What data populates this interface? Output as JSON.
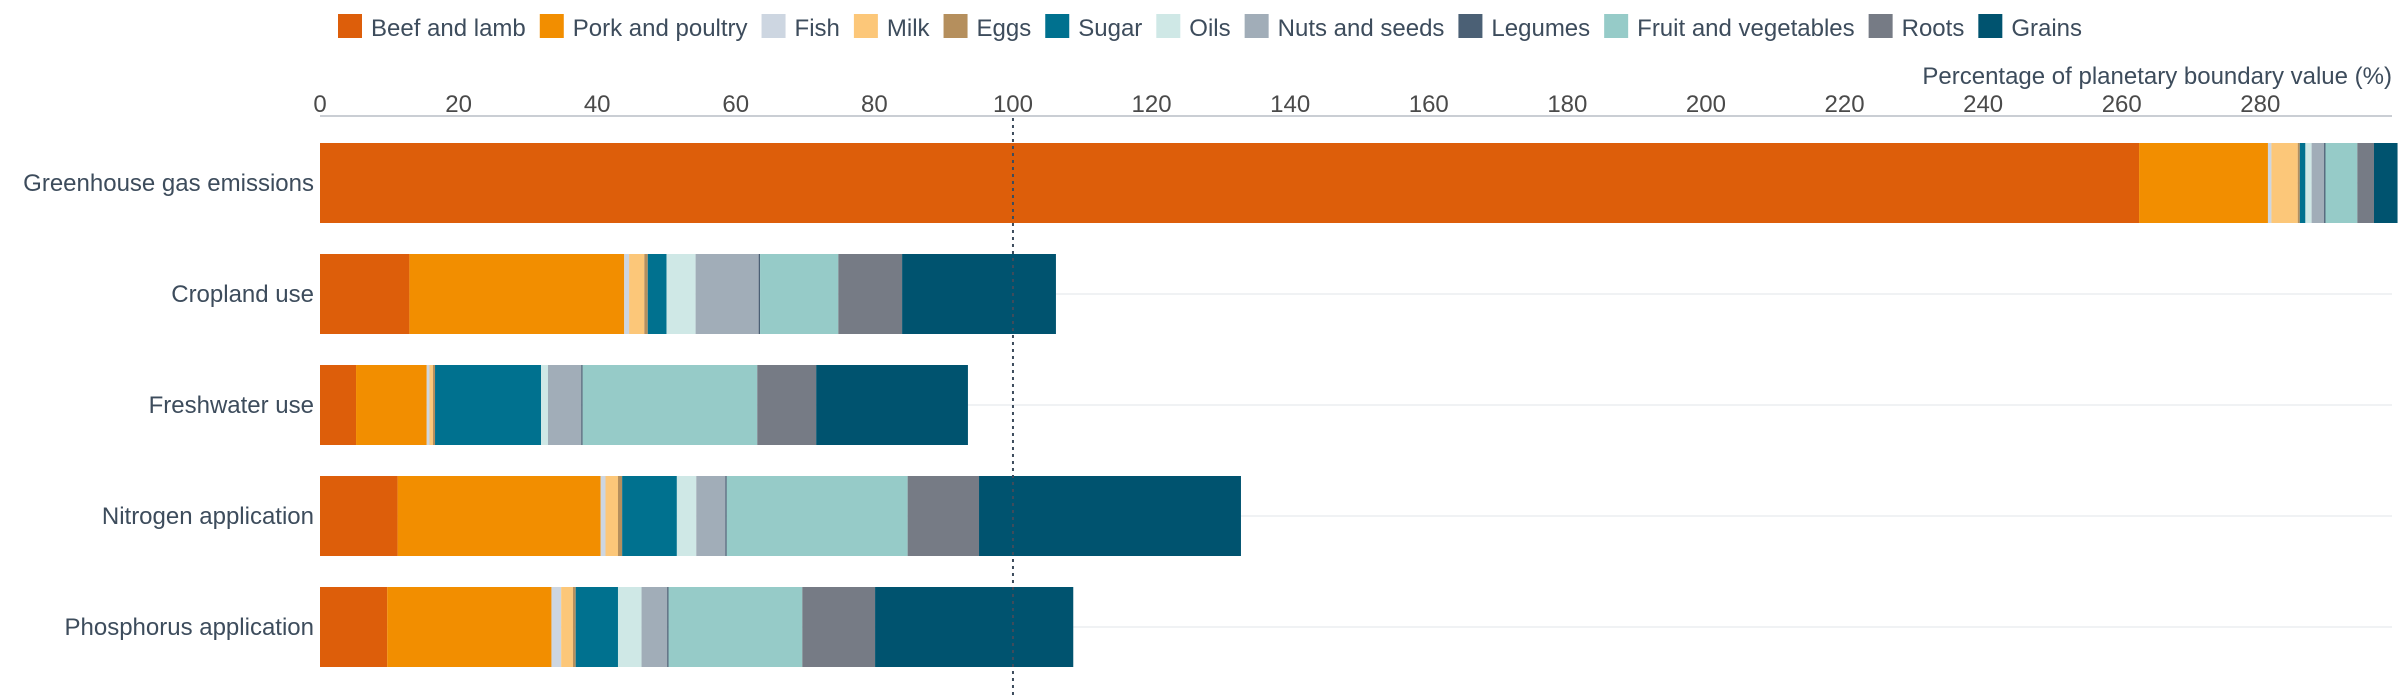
{
  "chart_data": {
    "type": "bar",
    "orientation": "horizontal",
    "stacked": true,
    "title": "",
    "xlabel": "Percentage of planetary boundary value (%)",
    "ylabel": "",
    "xlim": [
      0,
      299
    ],
    "x_ticks": [
      0,
      20,
      40,
      60,
      80,
      100,
      120,
      140,
      160,
      180,
      200,
      220,
      240,
      260,
      280
    ],
    "reference_line": {
      "value": 100,
      "style": "dotted"
    },
    "legend_position": "top",
    "grid": "horizontal row lines",
    "categories": [
      "Greenhouse gas emissions",
      "Cropland use",
      "Freshwater use",
      "Nitrogen application",
      "Phosphorus application"
    ],
    "series": [
      {
        "name": "Beef and lamb",
        "color": "#dd5e0a",
        "values": [
          262.5,
          12.9,
          5.2,
          11.2,
          9.7
        ]
      },
      {
        "name": "Pork and poultry",
        "color": "#f28e00",
        "values": [
          18.6,
          31.0,
          10.2,
          29.3,
          23.7
        ]
      },
      {
        "name": "Fish",
        "color": "#cdd6e1",
        "values": [
          0.5,
          0.7,
          0.4,
          0.7,
          1.4
        ]
      },
      {
        "name": "Milk",
        "color": "#fcc779",
        "values": [
          3.8,
          2.2,
          0.5,
          1.8,
          1.7
        ]
      },
      {
        "name": "Eggs",
        "color": "#b58f5d",
        "values": [
          0.3,
          0.5,
          0.3,
          0.6,
          0.4
        ]
      },
      {
        "name": "Sugar",
        "color": "#00718f",
        "values": [
          0.8,
          2.7,
          15.3,
          7.9,
          6.1
        ]
      },
      {
        "name": "Oils",
        "color": "#cfe8e6",
        "values": [
          0.9,
          4.2,
          1.0,
          2.8,
          3.4
        ]
      },
      {
        "name": "Nuts and seeds",
        "color": "#a1adb8",
        "values": [
          1.8,
          9.1,
          4.8,
          4.2,
          3.7
        ]
      },
      {
        "name": "Legumes",
        "color": "#4b6075",
        "values": [
          0.2,
          0.2,
          0.2,
          0.2,
          0.2
        ]
      },
      {
        "name": "Fruit and vegetables",
        "color": "#96cbc8",
        "values": [
          4.6,
          11.3,
          25.2,
          26.1,
          19.3
        ]
      },
      {
        "name": "Roots",
        "color": "#767b85",
        "values": [
          2.4,
          9.2,
          8.5,
          10.3,
          10.5
        ]
      },
      {
        "name": "Grains",
        "color": "#00536f",
        "values": [
          3.4,
          22.2,
          21.9,
          37.8,
          28.6
        ]
      }
    ]
  }
}
